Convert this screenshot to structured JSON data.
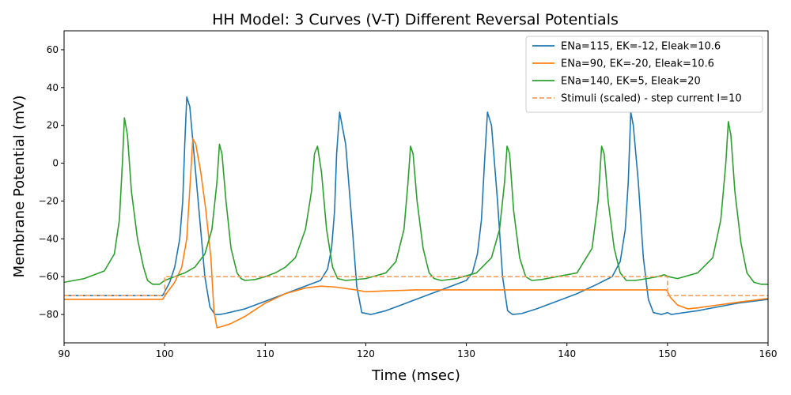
{
  "chart_data": {
    "type": "line",
    "title": "HH Model: 3 Curves (V-T) Different Reversal Potentials",
    "xlabel": "Time (msec)",
    "ylabel": "Membrane Potential (mV)",
    "xlim": [
      90,
      160
    ],
    "ylim": [
      -95,
      70
    ],
    "xticks": [
      "90",
      "100",
      "110",
      "120",
      "130",
      "140",
      "150",
      "160"
    ],
    "yticks": [
      "−80",
      "−60",
      "−40",
      "−20",
      "0",
      "20",
      "40",
      "60"
    ],
    "grid": false,
    "legend_position": "top-right",
    "series": [
      {
        "name": "ENa=115, EK=-12, Eleak=10.6",
        "color": "#1f77b4",
        "style": "solid",
        "x": [
          90,
          99.8,
          100,
          100.5,
          101,
          101.5,
          101.8,
          102,
          102.2,
          102.5,
          103,
          103.5,
          104,
          104.5,
          105,
          105.5,
          106,
          108,
          110,
          112,
          114,
          115.5,
          116.2,
          116.6,
          116.9,
          117.1,
          117.4,
          118,
          118.6,
          119.1,
          119.6,
          120.5,
          122,
          124,
          126,
          128,
          130,
          130.6,
          131.1,
          131.5,
          131.8,
          132.1,
          132.5,
          133.1,
          133.6,
          134.1,
          134.6,
          135.5,
          137,
          139,
          141,
          143,
          144.5,
          145.3,
          145.8,
          146.1,
          146.35,
          146.6,
          147.1,
          147.6,
          148.1,
          148.6,
          149.4,
          150,
          150.4,
          151,
          153,
          155,
          157,
          160
        ],
        "y": [
          -70,
          -70,
          -68,
          -63,
          -55,
          -40,
          -20,
          10,
          35,
          30,
          0,
          -30,
          -60,
          -76,
          -80,
          -80,
          -79.5,
          -77,
          -73,
          -69,
          -65,
          -62,
          -56,
          -45,
          -25,
          5,
          27,
          10,
          -30,
          -65,
          -79,
          -80,
          -78,
          -74,
          -70,
          -66,
          -62,
          -58,
          -48,
          -30,
          0,
          27,
          20,
          -20,
          -60,
          -78,
          -80,
          -79.5,
          -77,
          -73,
          -69,
          -64,
          -60,
          -52,
          -35,
          -10,
          27,
          20,
          -10,
          -50,
          -72,
          -79,
          -80,
          -79,
          -80,
          -79.5,
          -78,
          -76,
          -74,
          -72
        ]
      },
      {
        "name": "ENa=90, EK=-20, Eleak=10.6",
        "color": "#ff7f0e",
        "style": "solid",
        "x": [
          90,
          99.8,
          100.3,
          101,
          101.7,
          102.2,
          102.6,
          102.8,
          103.1,
          103.6,
          104.1,
          104.6,
          104.9,
          105.2,
          105.6,
          106.5,
          108,
          110,
          112,
          114,
          115.5,
          117,
          119,
          120,
          122,
          125,
          128,
          130,
          135,
          140,
          145,
          149.9,
          150.3,
          151,
          152,
          153,
          155,
          157,
          160
        ],
        "y": [
          -72,
          -72,
          -68,
          -63,
          -55,
          -40,
          -5,
          13,
          10,
          -5,
          -25,
          -50,
          -78,
          -87,
          -86.5,
          -85,
          -81,
          -74,
          -69,
          -66,
          -65,
          -65.5,
          -67,
          -68,
          -67.5,
          -67,
          -67,
          -67,
          -67,
          -67,
          -67,
          -67,
          -71,
          -75,
          -77,
          -76.5,
          -75,
          -73.5,
          -71.5
        ]
      },
      {
        "name": "ENa=140, EK=5, Eleak=20",
        "color": "#2ca02c",
        "style": "solid",
        "x": [
          90,
          92,
          94,
          95,
          95.5,
          95.8,
          96,
          96.3,
          96.7,
          97.3,
          97.9,
          98.3,
          98.8,
          99.5,
          100,
          101,
          102,
          103,
          104,
          104.7,
          105.2,
          105.45,
          105.7,
          106.1,
          106.6,
          107.2,
          107.6,
          108,
          109,
          110,
          111,
          112,
          113,
          114,
          114.6,
          114.9,
          115.2,
          115.6,
          116.1,
          116.7,
          117.2,
          118,
          120,
          122,
          123,
          123.8,
          124.2,
          124.45,
          124.7,
          125.1,
          125.7,
          126.3,
          126.8,
          127.5,
          129,
          131,
          132.5,
          133.3,
          133.8,
          134.05,
          134.3,
          134.7,
          135.3,
          135.9,
          136.5,
          137.5,
          139,
          141,
          142.5,
          143.1,
          143.45,
          143.7,
          144.1,
          144.7,
          145.3,
          145.9,
          146.8,
          148,
          149,
          149.7,
          150.1,
          151,
          153,
          154.5,
          155.3,
          155.8,
          156.05,
          156.3,
          156.7,
          157.3,
          157.9,
          158.6,
          159.3,
          160
        ],
        "y": [
          -63,
          -61,
          -57,
          -48,
          -30,
          0,
          24,
          15,
          -15,
          -40,
          -55,
          -62,
          -64,
          -64,
          -62,
          -60,
          -58,
          -55,
          -48,
          -35,
          -10,
          10,
          5,
          -20,
          -45,
          -58,
          -61,
          -62,
          -61.5,
          -60,
          -58,
          -55,
          -50,
          -35,
          -15,
          5,
          9,
          -5,
          -35,
          -55,
          -61,
          -62,
          -61,
          -58,
          -52,
          -35,
          -10,
          9,
          5,
          -20,
          -45,
          -58,
          -61,
          -62,
          -61,
          -58,
          -50,
          -35,
          -10,
          9,
          5,
          -25,
          -50,
          -60,
          -62,
          -61.5,
          -60,
          -58,
          -45,
          -20,
          9,
          5,
          -20,
          -45,
          -58,
          -62,
          -62,
          -61,
          -60,
          -59,
          -60,
          -61,
          -58,
          -50,
          -30,
          0,
          22,
          15,
          -15,
          -42,
          -58,
          -63,
          -64,
          -64
        ]
      },
      {
        "name": "Stimuli (scaled) - step current I=10",
        "color": "#f5a060",
        "style": "dashed",
        "x": [
          90,
          100,
          100,
          150,
          150,
          160
        ],
        "y": [
          -70,
          -70,
          -60,
          -60,
          -70,
          -70
        ]
      }
    ]
  }
}
